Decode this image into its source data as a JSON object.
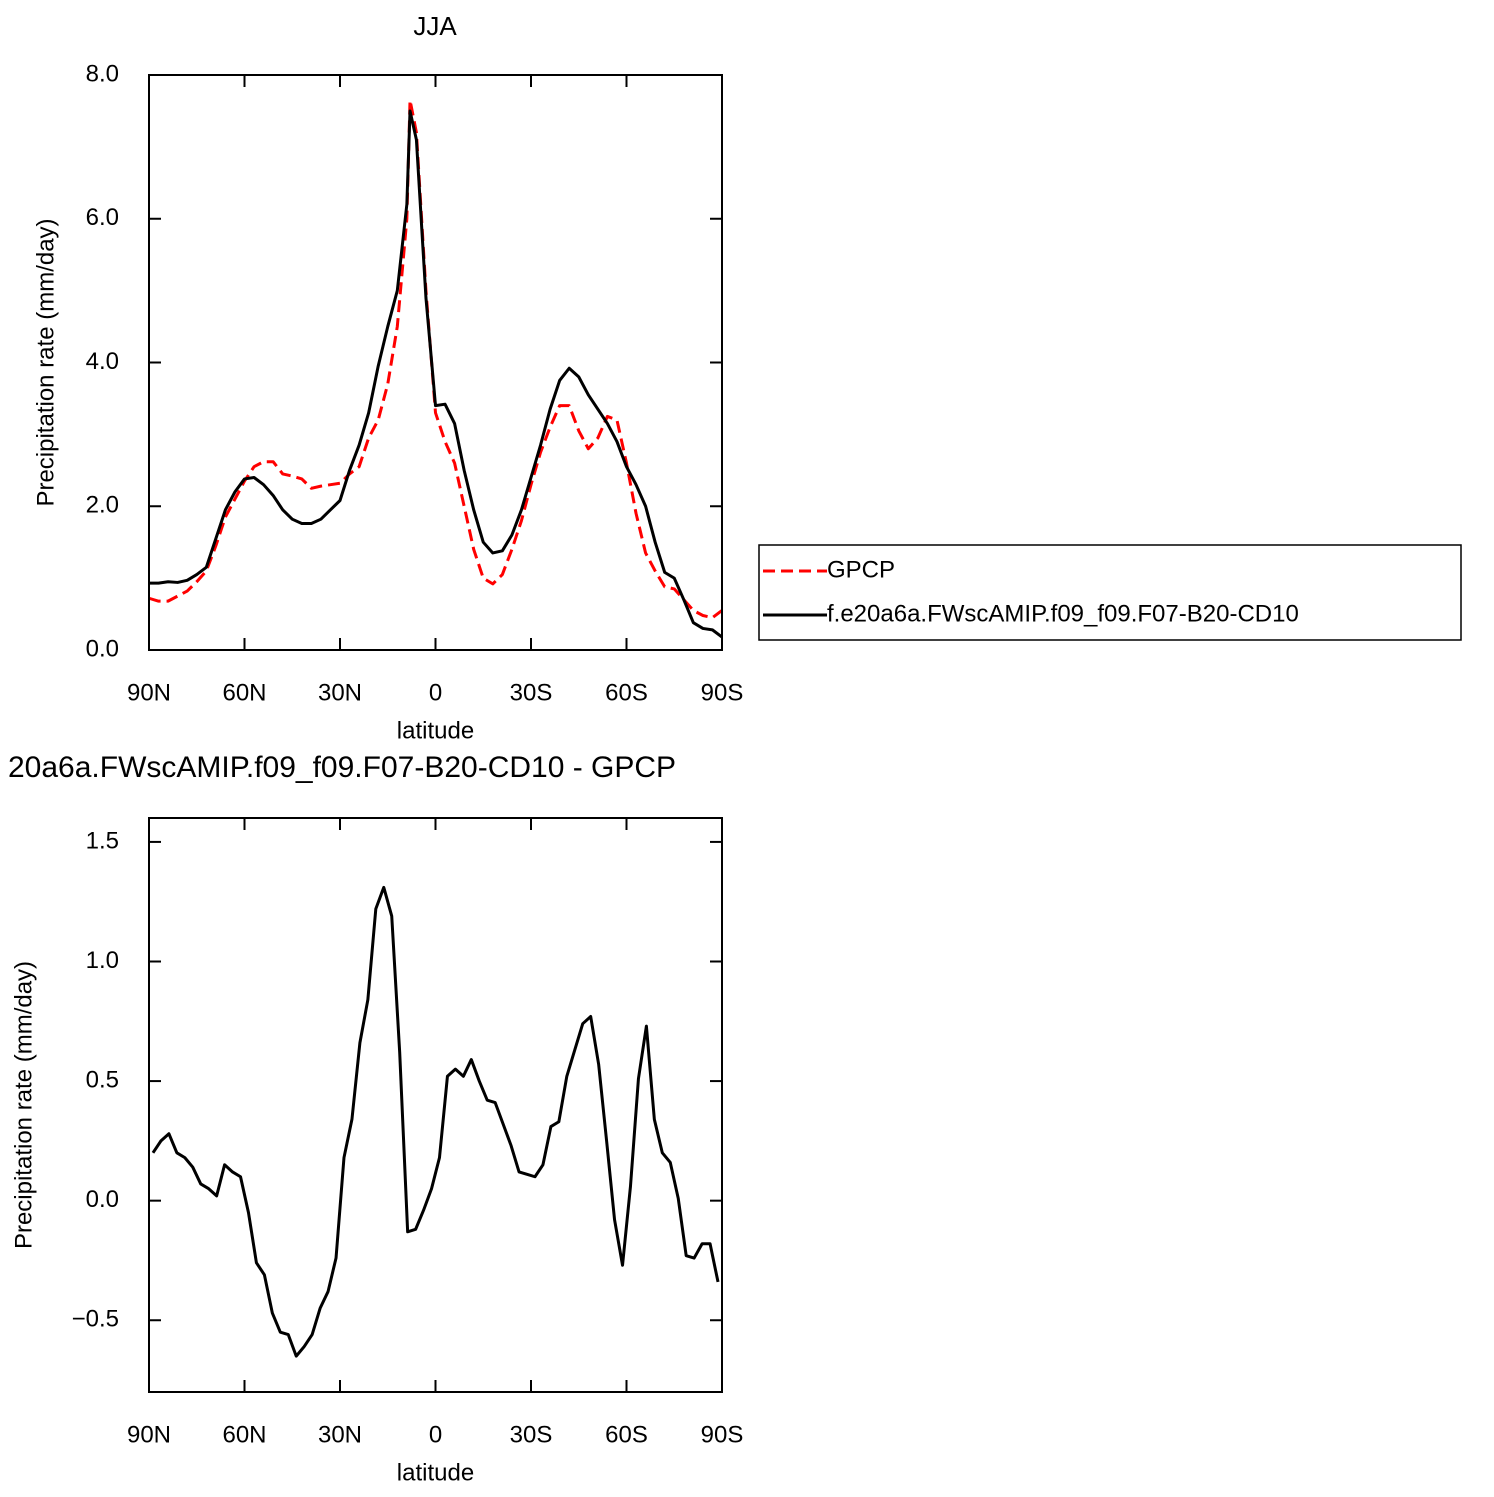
{
  "chart_data": [
    {
      "type": "line",
      "title": "JJA",
      "xlabel": "latitude",
      "ylabel": "Precipitation rate (mm/day)",
      "x": [
        90,
        87,
        84,
        81,
        78,
        75,
        72,
        69,
        66,
        63,
        60,
        57,
        54,
        51,
        48,
        45,
        42,
        39,
        36,
        33,
        30,
        27,
        24,
        21,
        18,
        15,
        12,
        9,
        8,
        6,
        3,
        0,
        -3,
        -6,
        -9,
        -12,
        -15,
        -18,
        -21,
        -24,
        -27,
        -30,
        -33,
        -36,
        -39,
        -42,
        -45,
        -48,
        -51,
        -54,
        -57,
        -60,
        -63,
        -66,
        -69,
        -72,
        -75,
        -78,
        -81,
        -84,
        -87,
        -90
      ],
      "series": [
        {
          "name": "GPCP",
          "color": "#ff0000",
          "linestyle": "dashed",
          "values": [
            0.72,
            0.68,
            0.68,
            0.75,
            0.82,
            0.95,
            1.1,
            1.45,
            1.85,
            2.1,
            2.35,
            2.55,
            2.62,
            2.62,
            2.45,
            2.42,
            2.38,
            2.25,
            2.28,
            2.3,
            2.32,
            2.45,
            2.55,
            2.95,
            3.2,
            3.7,
            4.5,
            6.0,
            7.65,
            7.2,
            5.0,
            3.3,
            2.9,
            2.6,
            2.0,
            1.4,
            1.0,
            0.92,
            1.05,
            1.4,
            1.8,
            2.3,
            2.75,
            3.1,
            3.4,
            3.4,
            3.05,
            2.8,
            2.95,
            3.25,
            3.2,
            2.6,
            1.9,
            1.35,
            1.1,
            0.88,
            0.85,
            0.7,
            0.55,
            0.48,
            0.45,
            0.55
          ]
        },
        {
          "name": "f.e20a6a.FWscAMIP.f09_f09.F07-B20-CD10",
          "color": "#000000",
          "linestyle": "solid",
          "values": [
            0.93,
            0.93,
            0.95,
            0.94,
            0.97,
            1.05,
            1.15,
            1.55,
            1.95,
            2.2,
            2.38,
            2.4,
            2.3,
            2.15,
            1.95,
            1.82,
            1.76,
            1.76,
            1.82,
            1.95,
            2.08,
            2.5,
            2.85,
            3.3,
            3.95,
            4.5,
            5.0,
            6.2,
            7.5,
            7.1,
            4.9,
            3.4,
            3.42,
            3.15,
            2.5,
            1.95,
            1.5,
            1.35,
            1.38,
            1.6,
            1.95,
            2.4,
            2.85,
            3.35,
            3.75,
            3.92,
            3.8,
            3.55,
            3.35,
            3.15,
            2.9,
            2.55,
            2.3,
            2.0,
            1.5,
            1.08,
            1.0,
            0.7,
            0.38,
            0.3,
            0.28,
            0.18
          ]
        }
      ],
      "xlim": [
        90,
        -90
      ],
      "xticks": [
        {
          "value": 90,
          "label": "90N"
        },
        {
          "value": 60,
          "label": "60N"
        },
        {
          "value": 30,
          "label": "30N"
        },
        0,
        {
          "value": -30,
          "label": "30S"
        },
        {
          "value": -60,
          "label": "60S"
        },
        {
          "value": -90,
          "label": "90S"
        }
      ],
      "ylim": [
        0,
        8
      ],
      "yticks": [
        {
          "value": 0,
          "label": "0.0"
        },
        {
          "value": 2,
          "label": "2.0"
        },
        {
          "value": 4,
          "label": "4.0"
        },
        {
          "value": 6,
          "label": "6.0"
        },
        {
          "value": 8,
          "label": "8.0"
        }
      ],
      "legend": "right"
    },
    {
      "type": "line",
      "title": "20a6a.FWscAMIP.f09_f09.F07-B20-CD10 - GPCP",
      "xlabel": "latitude",
      "ylabel": "Precipitation rate (mm/day)",
      "x": [
        88.75,
        86.25,
        83.75,
        81.25,
        78.75,
        76.25,
        73.75,
        71.25,
        68.75,
        66.25,
        63.75,
        61.25,
        58.75,
        56.25,
        53.75,
        51.25,
        48.75,
        46.25,
        43.75,
        41.25,
        38.75,
        36.25,
        33.75,
        31.25,
        28.75,
        26.25,
        23.75,
        21.25,
        18.75,
        16.25,
        13.75,
        11.25,
        8.75,
        6.25,
        3.75,
        1.25,
        -1.25,
        -3.75,
        -6.25,
        -8.75,
        -11.25,
        -13.75,
        -16.25,
        -18.75,
        -21.25,
        -23.75,
        -26.25,
        -28.75,
        -31.25,
        -33.75,
        -36.25,
        -38.75,
        -41.25,
        -43.75,
        -46.25,
        -48.75,
        -51.25,
        -53.75,
        -56.25,
        -58.75,
        -61.25,
        -63.75,
        -66.25,
        -68.75,
        -71.25,
        -73.75,
        -76.25,
        -78.75,
        -81.25,
        -83.75,
        -86.25,
        -88.75
      ],
      "color": "#000000",
      "values": [
        0.2,
        0.25,
        0.28,
        0.2,
        0.18,
        0.14,
        0.07,
        0.05,
        0.02,
        0.15,
        0.12,
        0.1,
        -0.05,
        -0.26,
        -0.31,
        -0.47,
        -0.55,
        -0.56,
        -0.65,
        -0.61,
        -0.56,
        -0.45,
        -0.38,
        -0.24,
        0.18,
        0.34,
        0.66,
        0.84,
        1.22,
        1.31,
        1.19,
        0.62,
        -0.13,
        -0.12,
        -0.04,
        0.05,
        0.18,
        0.52,
        0.55,
        0.52,
        0.59,
        0.5,
        0.42,
        0.41,
        0.32,
        0.23,
        0.12,
        0.11,
        0.1,
        0.15,
        0.31,
        0.33,
        0.52,
        0.63,
        0.74,
        0.77,
        0.57,
        0.25,
        -0.08,
        -0.27,
        0.06,
        0.51,
        0.73,
        0.34,
        0.2,
        0.16,
        0.01,
        -0.23,
        -0.24,
        -0.18,
        -0.18,
        -0.34
      ],
      "xlim": [
        90,
        -90
      ],
      "xticks": [
        {
          "value": 90,
          "label": "90N"
        },
        {
          "value": 60,
          "label": "60N"
        },
        {
          "value": 30,
          "label": "30N"
        },
        0,
        {
          "value": -30,
          "label": "30S"
        },
        {
          "value": -60,
          "label": "60S"
        },
        {
          "value": -90,
          "label": "90S"
        }
      ],
      "ylim": [
        -0.8,
        1.6
      ],
      "yticks": [
        {
          "value": -0.5,
          "label": "−0.5"
        },
        {
          "value": 0,
          "label": "0.0"
        },
        0.5,
        {
          "value": 1,
          "label": "1.0"
        },
        1.5
      ]
    }
  ]
}
